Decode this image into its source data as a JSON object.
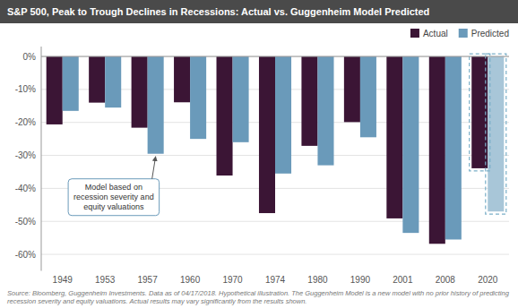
{
  "chart_data": {
    "type": "bar",
    "title": "S&P 500, Peak to Trough Declines in Recessions: Actual vs. Guggenheim Model Predicted",
    "categories": [
      "1949",
      "1953",
      "1957",
      "1960",
      "1970",
      "1974",
      "1980",
      "1990",
      "2001",
      "2008",
      "2020"
    ],
    "series": [
      {
        "name": "Actual",
        "color": "#3b1535",
        "values": [
          -20.6,
          -14.0,
          -21.6,
          -13.9,
          -36.1,
          -47.5,
          -27.1,
          -19.9,
          -49.1,
          -56.8,
          -33.9
        ]
      },
      {
        "name": "Predicted",
        "color": "#6a9aba",
        "colors": [
          "#6a9aba",
          "#6a9aba",
          "#6a9aba",
          "#6a9aba",
          "#6a9aba",
          "#6a9aba",
          "#6a9aba",
          "#6a9aba",
          "#6a9aba",
          "#6a9aba",
          "#a8c6d8"
        ],
        "values": [
          -16.5,
          -15.5,
          -29.5,
          -25.0,
          -26.0,
          -35.5,
          -33.0,
          -24.5,
          -53.5,
          -55.5,
          -47.0
        ]
      }
    ],
    "ylim": [
      -65,
      3
    ],
    "yticks": [
      {
        "value": 0,
        "label": "0%"
      },
      {
        "value": -10,
        "label": "-10%"
      },
      {
        "value": -20,
        "label": "-20%"
      },
      {
        "value": -30,
        "label": "-30%"
      },
      {
        "value": -40,
        "label": "-40%"
      },
      {
        "value": -50,
        "label": "-50%"
      },
      {
        "value": -60,
        "label": "-60%"
      }
    ],
    "grid": true,
    "legend": "top-right",
    "annotations": [
      {
        "text": "Model based on\nrecession severity and\nequity valuations",
        "category": "1957",
        "series": "Predicted"
      }
    ],
    "footnote": "Source: Bloomberg, Guggenheim Investments. Data as of 04/17/2018. Hypothetical illustration. The Guggenheim Model is a new model with no prior history of predicting recession severity and equity valuations. Actual results may vary significantly from the results shown."
  }
}
